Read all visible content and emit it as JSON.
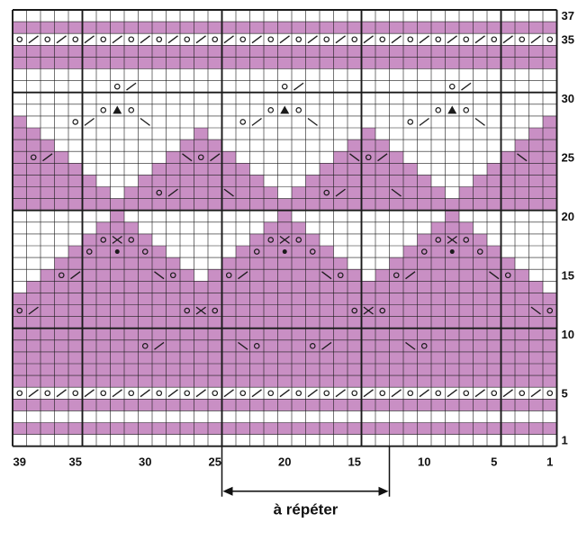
{
  "chart_data": {
    "type": "knitting-chart",
    "columns": 39,
    "rows": 37,
    "repeat_label": "à répéter",
    "repeat_columns": [
      13,
      24
    ],
    "column_labels": [
      {
        "col": 39,
        "text": "39"
      },
      {
        "col": 35,
        "text": "35"
      },
      {
        "col": 30,
        "text": "30"
      },
      {
        "col": 25,
        "text": "25"
      },
      {
        "col": 20,
        "text": "20"
      },
      {
        "col": 15,
        "text": "15"
      },
      {
        "col": 10,
        "text": "10"
      },
      {
        "col": 5,
        "text": "5"
      },
      {
        "col": 1,
        "text": "1"
      }
    ],
    "row_labels": [
      {
        "row": 1,
        "text": "1"
      },
      {
        "row": 5,
        "text": "5"
      },
      {
        "row": 10,
        "text": "10"
      },
      {
        "row": 15,
        "text": "15"
      },
      {
        "row": 20,
        "text": "20"
      },
      {
        "row": 25,
        "text": "25"
      },
      {
        "row": 30,
        "text": "30"
      },
      {
        "row": 35,
        "text": "35"
      },
      {
        "row": 37,
        "text": "37"
      }
    ],
    "colors": {
      "contrast": "#c98fc4",
      "background": "#ffffff",
      "grid": "#1a1a1a"
    },
    "band_rows": [
      2,
      4,
      6,
      7,
      33,
      34,
      36
    ],
    "triangle_centers": [
      8,
      20,
      32
    ],
    "dark_zone_rows": [
      21,
      31
    ],
    "light_zone_rows": [
      8,
      20
    ]
  }
}
